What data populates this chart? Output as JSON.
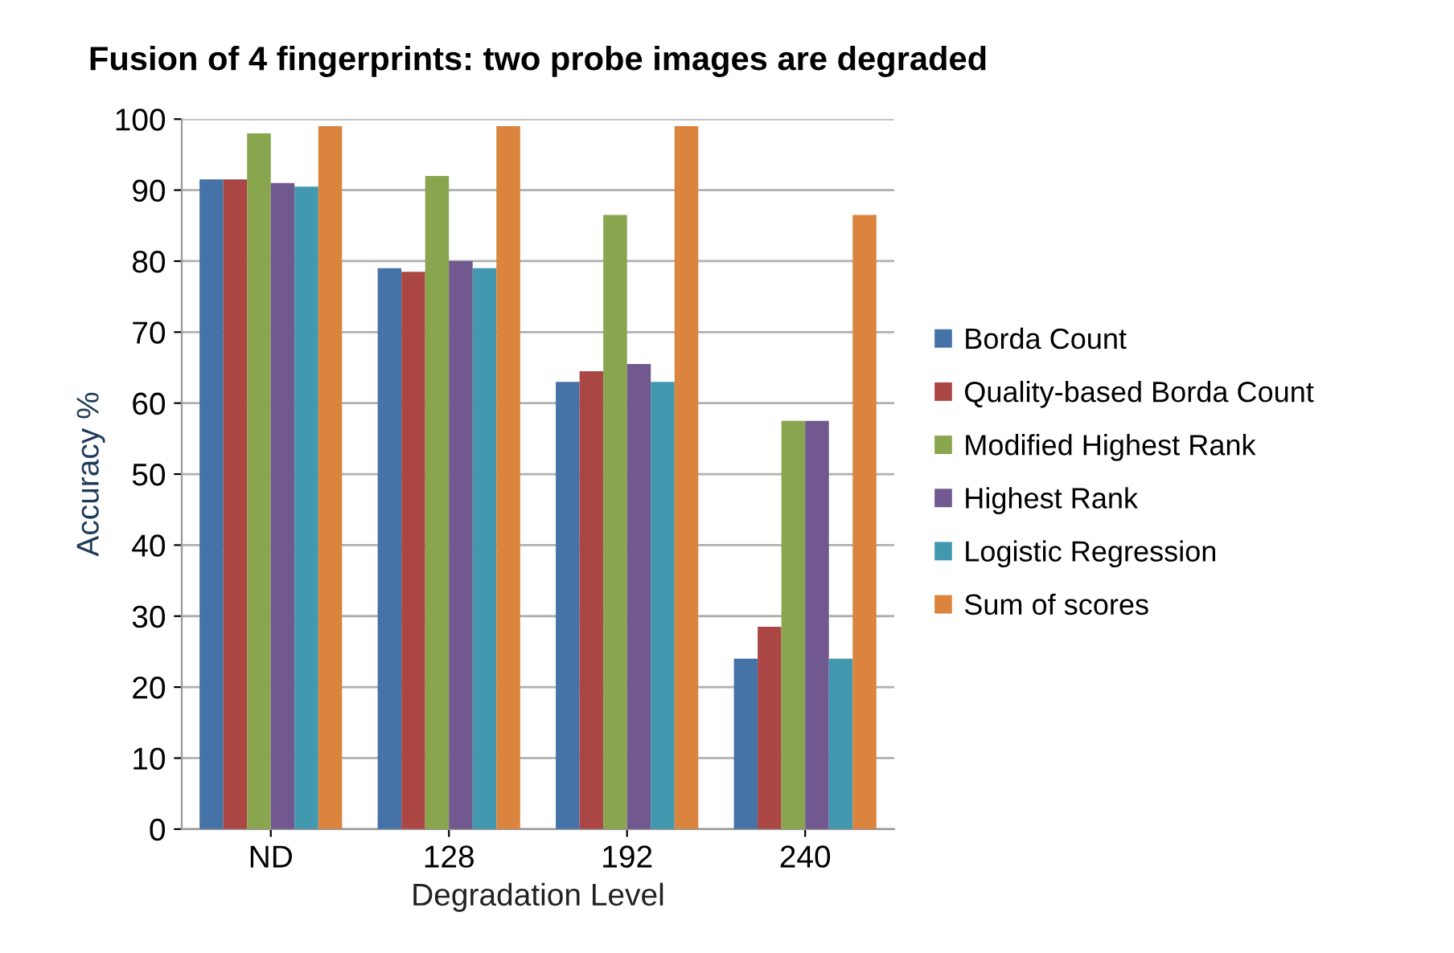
{
  "chart_data": {
    "type": "bar",
    "title": "Fusion of 4 fingerprints: two probe images are degraded",
    "xlabel": "Degradation Level",
    "ylabel": "Accuracy %",
    "categories": [
      "ND",
      "128",
      "192",
      "240"
    ],
    "series": [
      {
        "name": "Borda Count",
        "color": "#4572a7",
        "values": [
          91.5,
          79,
          63,
          24
        ]
      },
      {
        "name": "Quality-based Borda Count",
        "color": "#aa4643",
        "values": [
          91.5,
          78.5,
          64.5,
          28.5
        ]
      },
      {
        "name": "Modified Highest Rank",
        "color": "#89a54e",
        "values": [
          98,
          92,
          86.5,
          57.5
        ]
      },
      {
        "name": "Highest Rank",
        "color": "#71588f",
        "values": [
          91,
          80,
          65.5,
          57.5
        ]
      },
      {
        "name": "Logistic Regression",
        "color": "#4198af",
        "values": [
          90.5,
          79,
          63,
          24
        ]
      },
      {
        "name": "Sum of scores",
        "color": "#db843d",
        "values": [
          99,
          99,
          99,
          86.5
        ]
      }
    ],
    "ylim": [
      0,
      100
    ],
    "yticks": [
      0,
      10,
      20,
      30,
      40,
      50,
      60,
      70,
      80,
      90,
      100
    ],
    "grid": "y",
    "legend": "right"
  }
}
